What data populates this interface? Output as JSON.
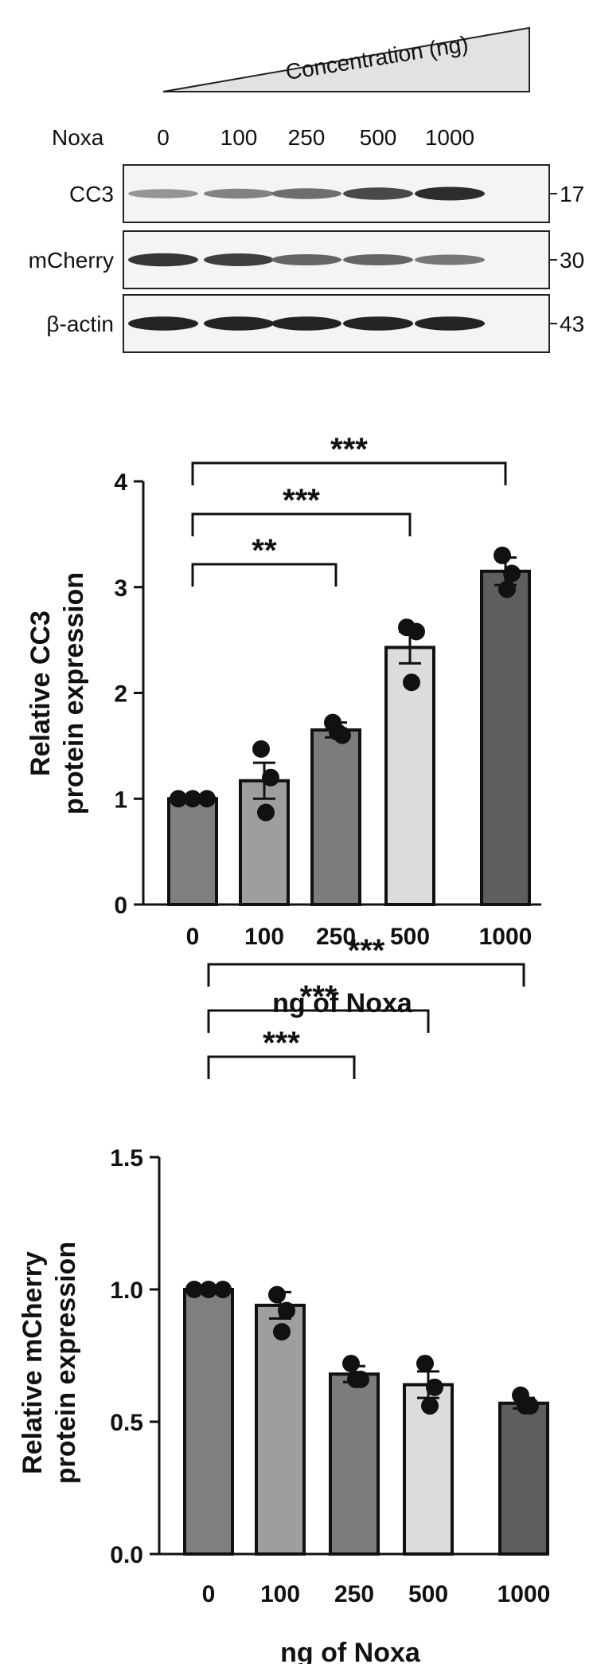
{
  "western_blot": {
    "gradient_label": "Concentration (ng)",
    "row_label": "Noxa",
    "lanes": [
      "0",
      "100",
      "250",
      "500",
      "1000"
    ],
    "blots": [
      {
        "label": "CC3",
        "mw": "17",
        "intensity": [
          0.35,
          0.45,
          0.55,
          0.75,
          0.9
        ]
      },
      {
        "label": "mCherry",
        "mw": "30",
        "intensity": [
          0.85,
          0.8,
          0.6,
          0.6,
          0.5
        ]
      },
      {
        "label": "β-actin",
        "mw": "43",
        "intensity": [
          0.95,
          0.95,
          0.95,
          0.95,
          0.95
        ]
      }
    ]
  },
  "chart_data": [
    {
      "type": "bar",
      "categories": [
        "0",
        "100",
        "250",
        "500",
        "1000"
      ],
      "values": [
        1.0,
        1.17,
        1.65,
        2.43,
        3.15
      ],
      "errors": [
        0.0,
        0.17,
        0.07,
        0.15,
        0.13
      ],
      "points": [
        [
          1.0,
          1.0,
          1.0
        ],
        [
          1.47,
          1.2,
          0.87
        ],
        [
          1.72,
          1.6,
          1.63
        ],
        [
          2.62,
          2.58,
          2.1
        ],
        [
          3.3,
          3.13,
          2.98
        ]
      ],
      "bar_colors": [
        "#7f7f7f",
        "#9e9e9e",
        "#7c7c7c",
        "#dcdcdc",
        "#5e5e5e"
      ],
      "xlabel": "ng of Noxa",
      "ylabel": "Relative CC3 protein expression",
      "ylabel_lines": [
        "Relative CC3",
        "protein expression"
      ],
      "ylim": [
        0,
        4
      ],
      "yticks": [
        "0",
        "1",
        "2",
        "3",
        "4"
      ],
      "significance": [
        {
          "from": "0",
          "to": "250",
          "label": "**"
        },
        {
          "from": "0",
          "to": "500",
          "label": "***"
        },
        {
          "from": "0",
          "to": "1000",
          "label": "***"
        }
      ]
    },
    {
      "type": "bar",
      "categories": [
        "0",
        "100",
        "250",
        "500",
        "1000"
      ],
      "values": [
        1.0,
        0.94,
        0.68,
        0.64,
        0.57
      ],
      "errors": [
        0.0,
        0.05,
        0.03,
        0.05,
        0.02
      ],
      "points": [
        [
          1.0,
          1.0,
          1.0
        ],
        [
          0.98,
          0.92,
          0.84
        ],
        [
          0.72,
          0.66,
          0.66
        ],
        [
          0.72,
          0.63,
          0.56
        ],
        [
          0.6,
          0.56,
          0.56
        ]
      ],
      "bar_colors": [
        "#7f7f7f",
        "#9e9e9e",
        "#7c7c7c",
        "#dcdcdc",
        "#5e5e5e"
      ],
      "xlabel": "ng of Noxa",
      "ylabel": "Relative mCherry protein expression",
      "ylabel_lines": [
        "Relative mCherry",
        "protein expression"
      ],
      "ylim": [
        0,
        1.5
      ],
      "yticks": [
        "0.0",
        "0.5",
        "1.0",
        "1.5"
      ],
      "significance": [
        {
          "from": "0",
          "to": "250",
          "label": "***"
        },
        {
          "from": "0",
          "to": "500",
          "label": "***"
        },
        {
          "from": "0",
          "to": "1000",
          "label": "***"
        }
      ]
    }
  ]
}
